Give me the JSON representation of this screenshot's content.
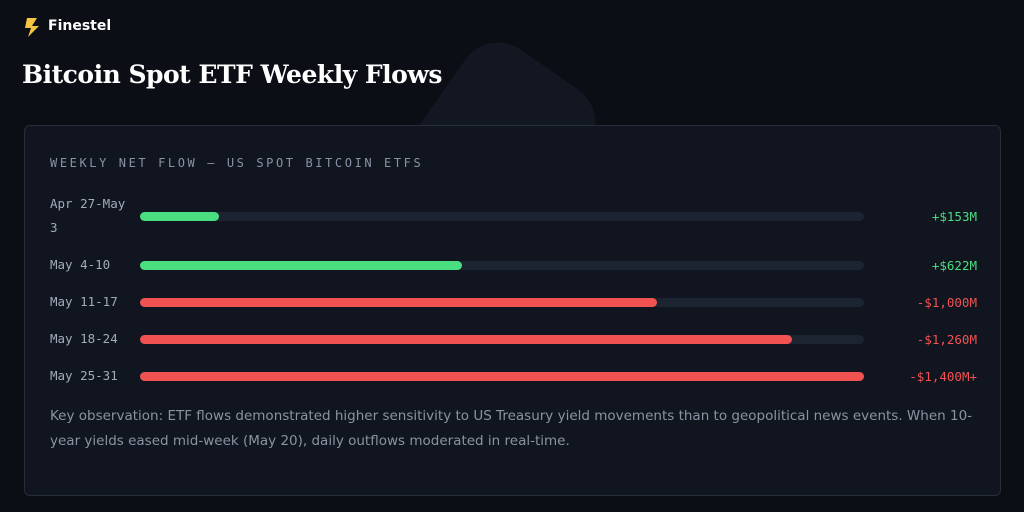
{
  "header": {
    "brand": "Finestel",
    "title": "Bitcoin Spot ETF Weekly Flows"
  },
  "chart_data": {
    "type": "bar",
    "orientation": "horizontal",
    "title": "WEEKLY NET FLOW — US SPOT BITCOIN ETFS",
    "categories": [
      "Apr 27-May 3",
      "May 4-10",
      "May 11-17",
      "May 18-24",
      "May 25-31"
    ],
    "values": [
      153,
      622,
      -1000,
      -1260,
      -1400
    ],
    "value_labels": [
      "+$153M",
      "+$622M",
      "-$1,000M",
      "-$1,260M",
      "-$1,400M+"
    ],
    "xlim": [
      0,
      1400
    ],
    "positive_color": "#4ade80",
    "negative_color": "#f05252",
    "track_color": "#1c2331"
  },
  "note": "Key observation: ETF flows demonstrated higher sensitivity to US Treasury yield movements than to geopolitical news events. When 10-year yields eased mid-week (May 20), daily outflows moderated in real-time."
}
